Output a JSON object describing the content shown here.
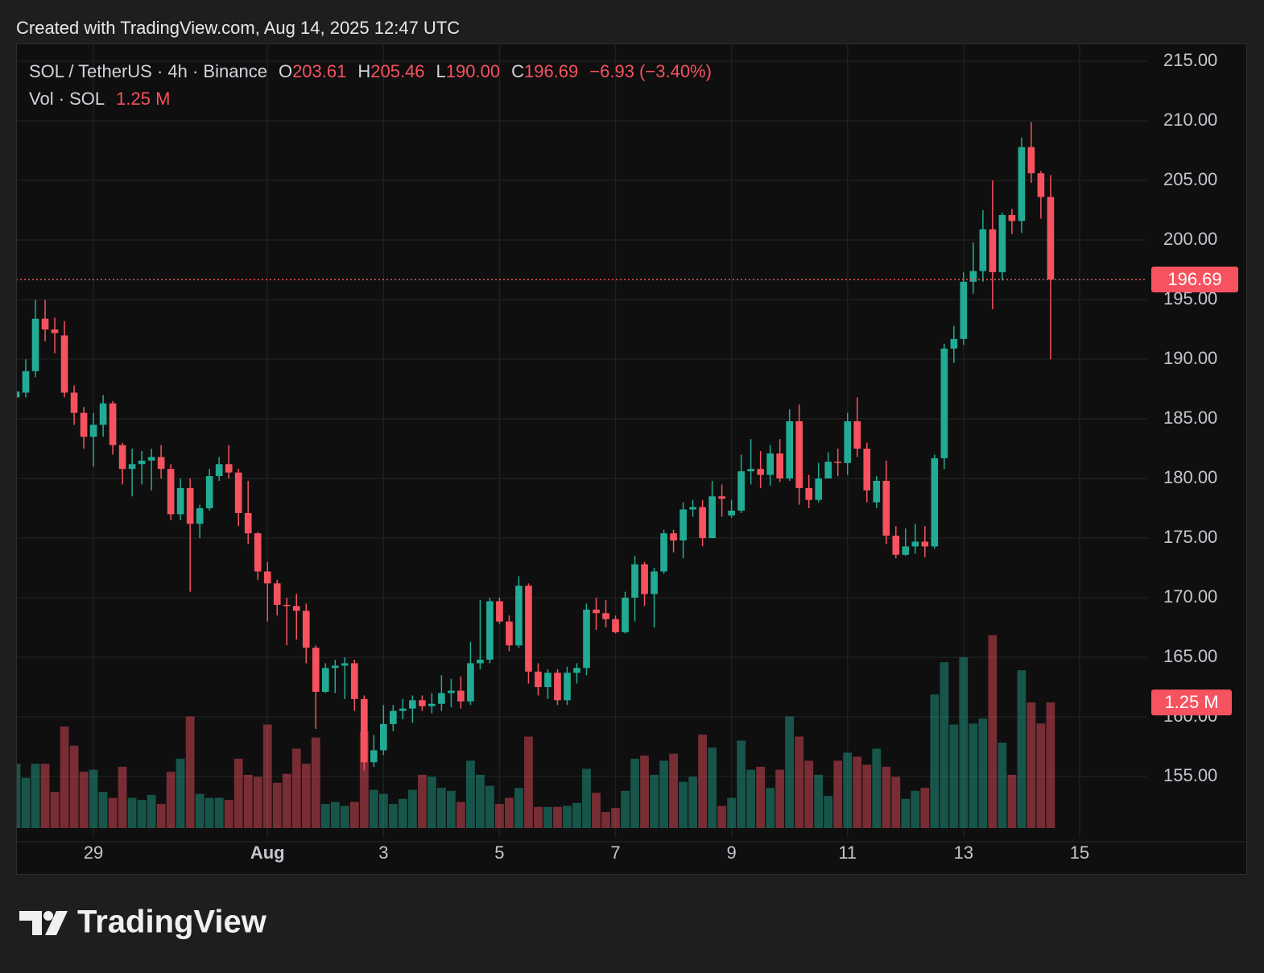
{
  "header": {
    "credit": "Created with TradingView.com, Aug 14, 2025 12:47 UTC",
    "symbol": "SOL / TetherUS · 4h · Binance",
    "ohlc": [
      {
        "key": "O",
        "value": "203.61"
      },
      {
        "key": "H",
        "value": "205.46"
      },
      {
        "key": "L",
        "value": "190.00"
      },
      {
        "key": "C",
        "value": "196.69"
      }
    ],
    "change": "−6.93 (−3.40%)",
    "volume_name": "Vol · SOL",
    "volume_value": "1.25 M"
  },
  "logo": "TradingView",
  "chart_data": {
    "type": "candlestick",
    "up_color": "#22ab94",
    "down_color": "#f7525f",
    "grid": true,
    "open": [
      186.8,
      187.2,
      189,
      193.4,
      192.5,
      192,
      187.2,
      185.5,
      183.5,
      184.5,
      186.3,
      182.8,
      180.8,
      181.2,
      181.5,
      181.8,
      180.8,
      177,
      179.2,
      176.2,
      177.5,
      180.2,
      181.2,
      180.5,
      177.1,
      175.4,
      172.2,
      171.2,
      169.4,
      169.3,
      168.9,
      165.8,
      162.1,
      164.1,
      164.3,
      164.5,
      161.5,
      156.2,
      157.2,
      159.4,
      160.5,
      160.7,
      161.4,
      160.9,
      161.1,
      162,
      162.2,
      161.3,
      164.5,
      164.8,
      169.7,
      168,
      166,
      171,
      163.8,
      162.5,
      163.7,
      161.4,
      163.7,
      164.1,
      169,
      168.7,
      168.2,
      167.1,
      170,
      172.8,
      170.3,
      172.2,
      175.4,
      174.8,
      177.4,
      177.6,
      175,
      178.5,
      176.9,
      177.3,
      180.6,
      180.8,
      180.3,
      182.1,
      180,
      184.8,
      179.2,
      178.2,
      180,
      181.4,
      181.3,
      184.8,
      182.5,
      178,
      179.8,
      175.2,
      173.6,
      174.3,
      174.7,
      174.3,
      181.7,
      190.9,
      191.7,
      196.5,
      197.4,
      200.9,
      197.3,
      202.1,
      201.6,
      207.8,
      205.6,
      203.61
    ],
    "high": [
      188.5,
      190,
      195,
      195,
      193.5,
      193.2,
      187.8,
      186,
      185.5,
      187,
      186.5,
      183,
      182.5,
      182.3,
      182.5,
      182.8,
      181.2,
      180,
      180,
      177.8,
      180.8,
      181.8,
      182.8,
      180.8,
      179.8,
      175.5,
      173,
      171.5,
      170,
      170.3,
      169.5,
      166,
      164.5,
      164.8,
      165,
      164.8,
      161.8,
      158.5,
      161,
      161,
      161.5,
      161.8,
      161.8,
      162,
      163.5,
      163.2,
      163.4,
      166.3,
      169.8,
      170,
      170,
      168.5,
      171.8,
      171.2,
      164.5,
      164,
      164,
      164.2,
      164.5,
      169.5,
      170,
      169.8,
      168.5,
      170.5,
      173.5,
      173,
      172.5,
      175.7,
      175.7,
      178,
      178.2,
      178.2,
      179.8,
      179.5,
      178.2,
      182,
      183.3,
      182.3,
      182.8,
      183.3,
      185.8,
      186.2,
      180.3,
      181.3,
      182.2,
      182.5,
      185.5,
      186.8,
      183,
      180.2,
      181.5,
      176,
      175.8,
      176.2,
      176,
      182,
      191.3,
      192.8,
      197.3,
      199.8,
      202.5,
      205,
      202.3,
      202.6,
      208.6,
      209.9,
      205.8,
      205.46
    ],
    "low": [
      186.5,
      186.8,
      188.5,
      191.5,
      190.5,
      186.8,
      184.5,
      182.5,
      181,
      183.5,
      182,
      179.5,
      178.5,
      179.5,
      179,
      180,
      176.5,
      176.5,
      170.5,
      175,
      177.3,
      179.8,
      180,
      176,
      174.5,
      171.5,
      168,
      168.5,
      166,
      166.5,
      164.5,
      159,
      162,
      162,
      161.5,
      160.5,
      155.5,
      155.8,
      156.8,
      158.8,
      159.8,
      159.5,
      160.5,
      160.3,
      160.5,
      160.8,
      160.7,
      161,
      164,
      164.5,
      167.8,
      165.5,
      165.8,
      162.8,
      161.8,
      161.5,
      161,
      161,
      162.8,
      163.5,
      167.3,
      167.5,
      167,
      167,
      168,
      169.3,
      167.5,
      172,
      173.8,
      173.3,
      176.8,
      174.3,
      175,
      176.8,
      176.7,
      177.1,
      179.5,
      179.2,
      179.4,
      179.7,
      179.8,
      177.8,
      177.5,
      178,
      180.5,
      180.2,
      180.3,
      181.8,
      178,
      177.5,
      174.5,
      173.3,
      173.5,
      173.7,
      173.4,
      174.1,
      180.8,
      189.7,
      191.2,
      195.5,
      196.5,
      194.2,
      196.6,
      200.5,
      200.6,
      204.8,
      201.8,
      190
    ],
    "close": [
      187.3,
      189,
      193.4,
      192.5,
      192.2,
      187.2,
      185.5,
      183.5,
      184.5,
      186.3,
      182.8,
      180.8,
      181.2,
      181.5,
      181.8,
      180.8,
      177,
      179.2,
      176.2,
      177.5,
      180.2,
      181.2,
      180.5,
      177.1,
      175.4,
      172.2,
      171.2,
      169.4,
      169.3,
      168.9,
      165.8,
      162.1,
      164.1,
      164.3,
      164.5,
      161.5,
      156.2,
      157.2,
      159.4,
      160.5,
      160.7,
      161.4,
      160.9,
      161.1,
      162,
      162.2,
      161.3,
      164.5,
      164.8,
      169.7,
      168,
      166,
      171,
      163.8,
      162.5,
      163.7,
      161.4,
      163.7,
      164.1,
      169,
      168.7,
      168.2,
      167.1,
      170,
      172.8,
      170.3,
      172.2,
      175.4,
      174.8,
      177.4,
      177.6,
      175,
      178.5,
      178.3,
      177.3,
      180.6,
      180.8,
      180.3,
      182.1,
      180,
      184.8,
      179.2,
      178.2,
      180,
      181.4,
      181.3,
      184.8,
      182.5,
      179,
      179.8,
      175.2,
      173.6,
      174.3,
      174.7,
      174.3,
      181.7,
      190.9,
      191.7,
      196.5,
      197.4,
      200.9,
      197.3,
      202.1,
      201.6,
      207.8,
      205.6,
      203.61,
      196.69
    ],
    "volume": [
      0.64,
      0.5,
      0.64,
      0.64,
      0.36,
      1.01,
      0.82,
      0.56,
      0.58,
      0.36,
      0.3,
      0.61,
      0.3,
      0.28,
      0.33,
      0.24,
      0.56,
      0.69,
      1.11,
      0.34,
      0.3,
      0.3,
      0.28,
      0.69,
      0.53,
      0.51,
      1.03,
      0.45,
      0.54,
      0.79,
      0.64,
      0.9,
      0.24,
      0.26,
      0.22,
      0.26,
      0.96,
      0.38,
      0.34,
      0.24,
      0.29,
      0.38,
      0.53,
      0.51,
      0.4,
      0.37,
      0.26,
      0.67,
      0.53,
      0.42,
      0.24,
      0.3,
      0.4,
      0.91,
      0.21,
      0.21,
      0.21,
      0.22,
      0.25,
      0.59,
      0.35,
      0.16,
      0.2,
      0.37,
      0.69,
      0.72,
      0.53,
      0.67,
      0.74,
      0.46,
      0.51,
      0.93,
      0.8,
      0.22,
      0.3,
      0.87,
      0.58,
      0.61,
      0.4,
      0.58,
      1.11,
      0.91,
      0.67,
      0.53,
      0.32,
      0.67,
      0.75,
      0.71,
      0.63,
      0.79,
      0.61,
      0.51,
      0.29,
      0.37,
      0.4,
      1.33,
      1.65,
      1.03,
      1.7,
      1.04,
      1.09,
      1.92,
      0.85,
      0.53,
      1.57,
      1.25,
      1.04,
      1.25
    ],
    "ylim": [
      149.53,
      216.42
    ],
    "yticks": [
      {
        "value": 155,
        "label": "155.00"
      },
      {
        "value": 160,
        "label": "160.00"
      },
      {
        "value": 165,
        "label": "165.00"
      },
      {
        "value": 170,
        "label": "170.00"
      },
      {
        "value": 175,
        "label": "175.00"
      },
      {
        "value": 180,
        "label": "180.00"
      },
      {
        "value": 185,
        "label": "185.00"
      },
      {
        "value": 190,
        "label": "190.00"
      },
      {
        "value": 195,
        "label": "195.00"
      },
      {
        "value": 200,
        "label": "200.00"
      },
      {
        "value": 205,
        "label": "205.00"
      },
      {
        "value": 210,
        "label": "210.00"
      },
      {
        "value": 215,
        "label": "215.00"
      }
    ],
    "volume_lim": [
      0,
      7.8
    ],
    "xlim": [
      0,
      117
    ],
    "xticks": [
      {
        "value": 8,
        "label": "29"
      },
      {
        "value": 26,
        "label": "Aug"
      },
      {
        "value": 38,
        "label": "3"
      },
      {
        "value": 50,
        "label": "5"
      },
      {
        "value": 62,
        "label": "7"
      },
      {
        "value": 74,
        "label": "9"
      },
      {
        "value": 86,
        "label": "11"
      },
      {
        "value": 98,
        "label": "13"
      },
      {
        "value": 110,
        "label": "15"
      }
    ]
  }
}
